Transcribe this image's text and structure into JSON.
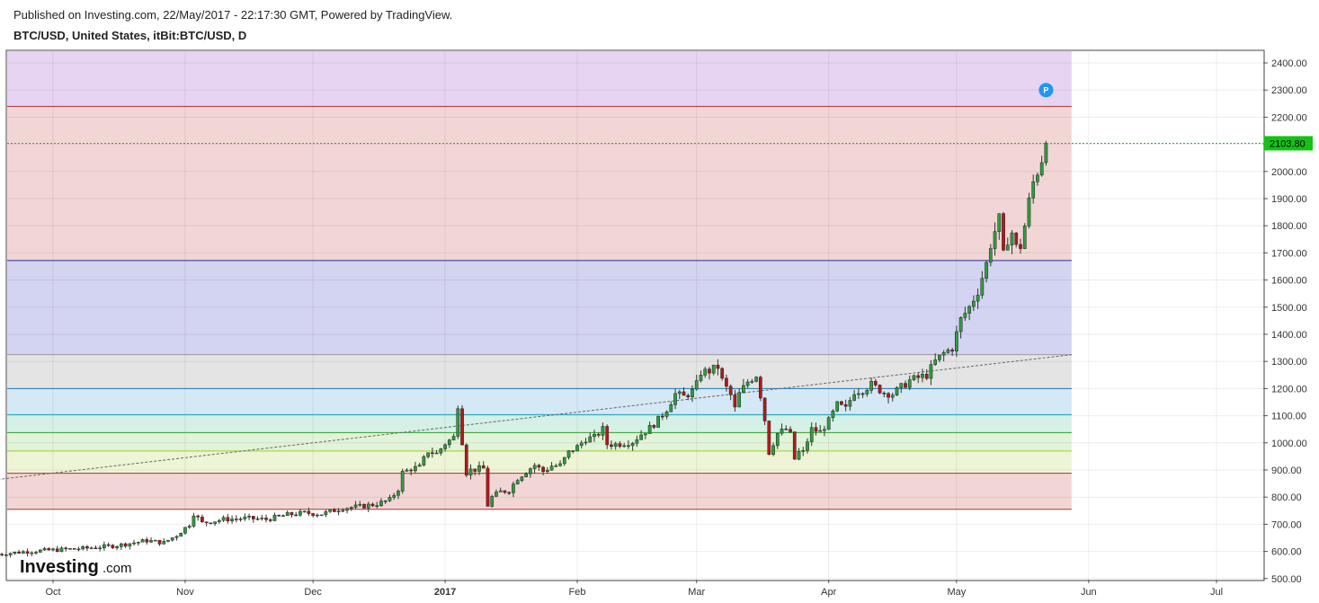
{
  "header": {
    "published": "Published on Investing.com, 22/May/2017 - 22:17:30 GMT, Powered by TradingView.",
    "symbol": "BTC/USD, United States, itBit:BTC/USD, D"
  },
  "logo": {
    "brand": "Investing",
    "suffix": ".com"
  },
  "colors": {
    "up": "#2e9e3e",
    "down": "#b51818",
    "last_price_bg": "#12c312",
    "marker": "#2196f3"
  },
  "chart_data": {
    "type": "candlestick",
    "timeframe": "D",
    "ylim": [
      500,
      2400
    ],
    "y_ticks": [
      "2400.00",
      "2300.00",
      "2200.00",
      "2100.00",
      "2000.00",
      "1900.00",
      "1800.00",
      "1700.00",
      "1600.00",
      "1500.00",
      "1400.00",
      "1300.00",
      "1200.00",
      "1100.00",
      "1000.00",
      "900.00",
      "800.00",
      "700.00",
      "600.00",
      "500.00"
    ],
    "x_ticks": [
      {
        "label": "Oct",
        "date": "2016-10-01"
      },
      {
        "label": "Nov",
        "date": "2016-11-01"
      },
      {
        "label": "Dec",
        "date": "2016-12-01"
      },
      {
        "label": "2017",
        "date": "2017-01-01",
        "bold": true
      },
      {
        "label": "Feb",
        "date": "2017-02-01"
      },
      {
        "label": "Mar",
        "date": "2017-03-01"
      },
      {
        "label": "Apr",
        "date": "2017-04-01"
      },
      {
        "label": "May",
        "date": "2017-05-01"
      },
      {
        "label": "Jun",
        "date": "2017-06-01"
      },
      {
        "label": "Jul",
        "date": "2017-07-01"
      }
    ],
    "last_price": "2103.80",
    "last_price_value": 2103.8,
    "marker_label": "P",
    "marker": {
      "date": "2017-05-22",
      "price": 2300
    },
    "fib_levels": [
      {
        "price": 2240,
        "color": "#b03030",
        "fill_above": "#e6d4f2"
      },
      {
        "price": 1672,
        "color": "#2a2a8a",
        "fill_above": "#f2d6d6"
      },
      {
        "price": 1325,
        "color": "#9a9a9a",
        "fill_above": "#d3d3f2"
      },
      {
        "price": 1200,
        "color": "#1f77b4",
        "fill_above": "#e4e4e4"
      },
      {
        "price": 1104,
        "color": "#17a2b8",
        "fill_above": "#d4e8f5"
      },
      {
        "price": 1038,
        "color": "#2ca02c",
        "fill_above": "#d5f0e6"
      },
      {
        "price": 970,
        "color": "#9acd32",
        "fill_above": "#e1f3d8"
      },
      {
        "price": 888,
        "color": "#b03030",
        "fill_above": "#eef5d6"
      },
      {
        "price": 755,
        "color": "#b03030",
        "fill_above": "#f2d6d6"
      }
    ],
    "fib_range": {
      "start": "2016-09-18",
      "end": "2017-05-28"
    },
    "trendline": [
      {
        "date": "2016-09-18",
        "price": 865
      },
      {
        "date": "2017-05-28",
        "price": 1325
      }
    ],
    "daily_closes": [
      [
        "2016-09-18",
        590
      ],
      [
        "2016-09-25",
        600
      ],
      [
        "2016-10-02",
        606
      ],
      [
        "2016-10-09",
        612
      ],
      [
        "2016-10-16",
        622
      ],
      [
        "2016-10-23",
        640
      ],
      [
        "2016-10-27",
        632
      ],
      [
        "2016-10-30",
        660
      ],
      [
        "2016-11-02",
        700
      ],
      [
        "2016-11-03",
        740
      ],
      [
        "2016-11-05",
        705
      ],
      [
        "2016-11-10",
        718
      ],
      [
        "2016-11-15",
        722
      ],
      [
        "2016-11-20",
        718
      ],
      [
        "2016-11-25",
        735
      ],
      [
        "2016-11-29",
        742
      ],
      [
        "2016-12-03",
        738
      ],
      [
        "2016-12-08",
        760
      ],
      [
        "2016-12-12",
        765
      ],
      [
        "2016-12-16",
        775
      ],
      [
        "2016-12-19",
        790
      ],
      [
        "2016-12-21",
        830
      ],
      [
        "2016-12-22",
        890
      ],
      [
        "2016-12-24",
        905
      ],
      [
        "2016-12-26",
        910
      ],
      [
        "2016-12-28",
        970
      ],
      [
        "2016-12-30",
        960
      ],
      [
        "2017-01-01",
        998
      ],
      [
        "2017-01-03",
        1020
      ],
      [
        "2017-01-04",
        1140
      ],
      [
        "2017-01-05",
        1005
      ],
      [
        "2017-01-06",
        890
      ],
      [
        "2017-01-07",
        900
      ],
      [
        "2017-01-09",
        905
      ],
      [
        "2017-01-10",
        905
      ],
      [
        "2017-01-11",
        770
      ],
      [
        "2017-01-12",
        800
      ],
      [
        "2017-01-14",
        820
      ],
      [
        "2017-01-16",
        825
      ],
      [
        "2017-01-18",
        870
      ],
      [
        "2017-01-20",
        895
      ],
      [
        "2017-01-22",
        918
      ],
      [
        "2017-01-24",
        895
      ],
      [
        "2017-01-26",
        915
      ],
      [
        "2017-01-28",
        917
      ],
      [
        "2017-01-30",
        965
      ],
      [
        "2017-02-01",
        985
      ],
      [
        "2017-02-03",
        1015
      ],
      [
        "2017-02-05",
        1020
      ],
      [
        "2017-02-07",
        1050
      ],
      [
        "2017-02-08",
        995
      ],
      [
        "2017-02-10",
        995
      ],
      [
        "2017-02-12",
        1000
      ],
      [
        "2017-02-14",
        1005
      ],
      [
        "2017-02-16",
        1032
      ],
      [
        "2017-02-18",
        1055
      ],
      [
        "2017-02-20",
        1085
      ],
      [
        "2017-02-22",
        1125
      ],
      [
        "2017-02-24",
        1180
      ],
      [
        "2017-02-26",
        1170
      ],
      [
        "2017-02-28",
        1190
      ],
      [
        "2017-03-01",
        1215
      ],
      [
        "2017-03-02",
        1260
      ],
      [
        "2017-03-04",
        1265
      ],
      [
        "2017-03-06",
        1280
      ],
      [
        "2017-03-07",
        1230
      ],
      [
        "2017-03-09",
        1175
      ],
      [
        "2017-03-10",
        1125
      ],
      [
        "2017-03-11",
        1180
      ],
      [
        "2017-03-13",
        1225
      ],
      [
        "2017-03-15",
        1250
      ],
      [
        "2017-03-16",
        1175
      ],
      [
        "2017-03-17",
        1085
      ],
      [
        "2017-03-18",
        965
      ],
      [
        "2017-03-20",
        1035
      ],
      [
        "2017-03-22",
        1050
      ],
      [
        "2017-03-23",
        1030
      ],
      [
        "2017-03-24",
        940
      ],
      [
        "2017-03-25",
        965
      ],
      [
        "2017-03-26",
        965
      ],
      [
        "2017-03-28",
        1050
      ],
      [
        "2017-03-30",
        1040
      ],
      [
        "2017-04-01",
        1080
      ],
      [
        "2017-04-03",
        1140
      ],
      [
        "2017-04-05",
        1125
      ],
      [
        "2017-04-07",
        1190
      ],
      [
        "2017-04-09",
        1195
      ],
      [
        "2017-04-11",
        1215
      ],
      [
        "2017-04-12",
        1205
      ],
      [
        "2017-04-14",
        1185
      ],
      [
        "2017-04-16",
        1180
      ],
      [
        "2017-04-18",
        1205
      ],
      [
        "2017-04-20",
        1230
      ],
      [
        "2017-04-22",
        1240
      ],
      [
        "2017-04-24",
        1250
      ],
      [
        "2017-04-26",
        1300
      ],
      [
        "2017-04-28",
        1330
      ],
      [
        "2017-04-30",
        1350
      ],
      [
        "2017-05-02",
        1455
      ],
      [
        "2017-05-04",
        1500
      ],
      [
        "2017-05-06",
        1560
      ],
      [
        "2017-05-08",
        1660
      ],
      [
        "2017-05-09",
        1730
      ],
      [
        "2017-05-10",
        1780
      ],
      [
        "2017-05-11",
        1825
      ],
      [
        "2017-05-12",
        1690
      ],
      [
        "2017-05-13",
        1750
      ],
      [
        "2017-05-14",
        1775
      ],
      [
        "2017-05-15",
        1720
      ],
      [
        "2017-05-16",
        1725
      ],
      [
        "2017-05-17",
        1800
      ],
      [
        "2017-05-18",
        1890
      ],
      [
        "2017-05-19",
        1960
      ],
      [
        "2017-05-20",
        2000
      ],
      [
        "2017-05-21",
        2045
      ],
      [
        "2017-05-22",
        2103.8
      ]
    ]
  }
}
